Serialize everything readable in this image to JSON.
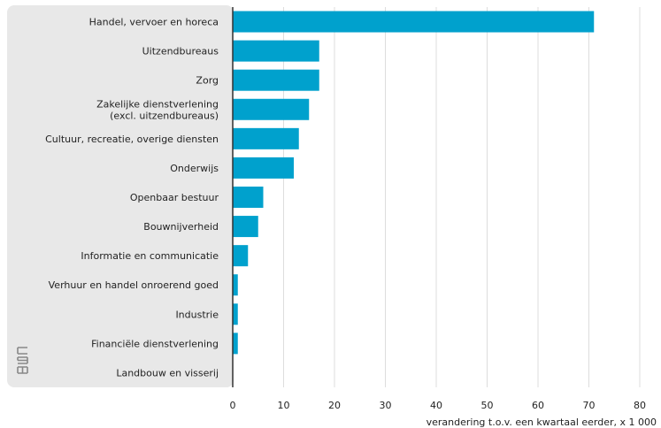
{
  "chart_data": {
    "type": "bar",
    "orientation": "horizontal",
    "categories": [
      "Handel, vervoer en horeca",
      "Uitzendbureaus",
      "Zorg",
      "Zakelijke dienstverlening\n(excl. uitzendbureaus)",
      "Cultuur, recreatie, overige diensten",
      "Onderwijs",
      "Openbaar bestuur",
      "Bouwnijverheid",
      "Informatie en communicatie",
      "Verhuur en handel onroerend goed",
      "Industrie",
      "Financiële dienstverlening",
      "Landbouw en visserij"
    ],
    "values": [
      71,
      17,
      17,
      15,
      13,
      12,
      6,
      5,
      3,
      1,
      1,
      1,
      0
    ],
    "xlabel": "verandering t.o.v. een kwartaal eerder, x 1 000",
    "ylabel": "",
    "xlim": [
      0,
      80
    ],
    "xticks": [
      0,
      10,
      20,
      30,
      40,
      50,
      60,
      70,
      80
    ],
    "grid": true,
    "bar_color": "#00A1CD",
    "label_panel_color": "#E8E8E8",
    "grid_color": "#DDDDDD",
    "logo": "CBS"
  }
}
